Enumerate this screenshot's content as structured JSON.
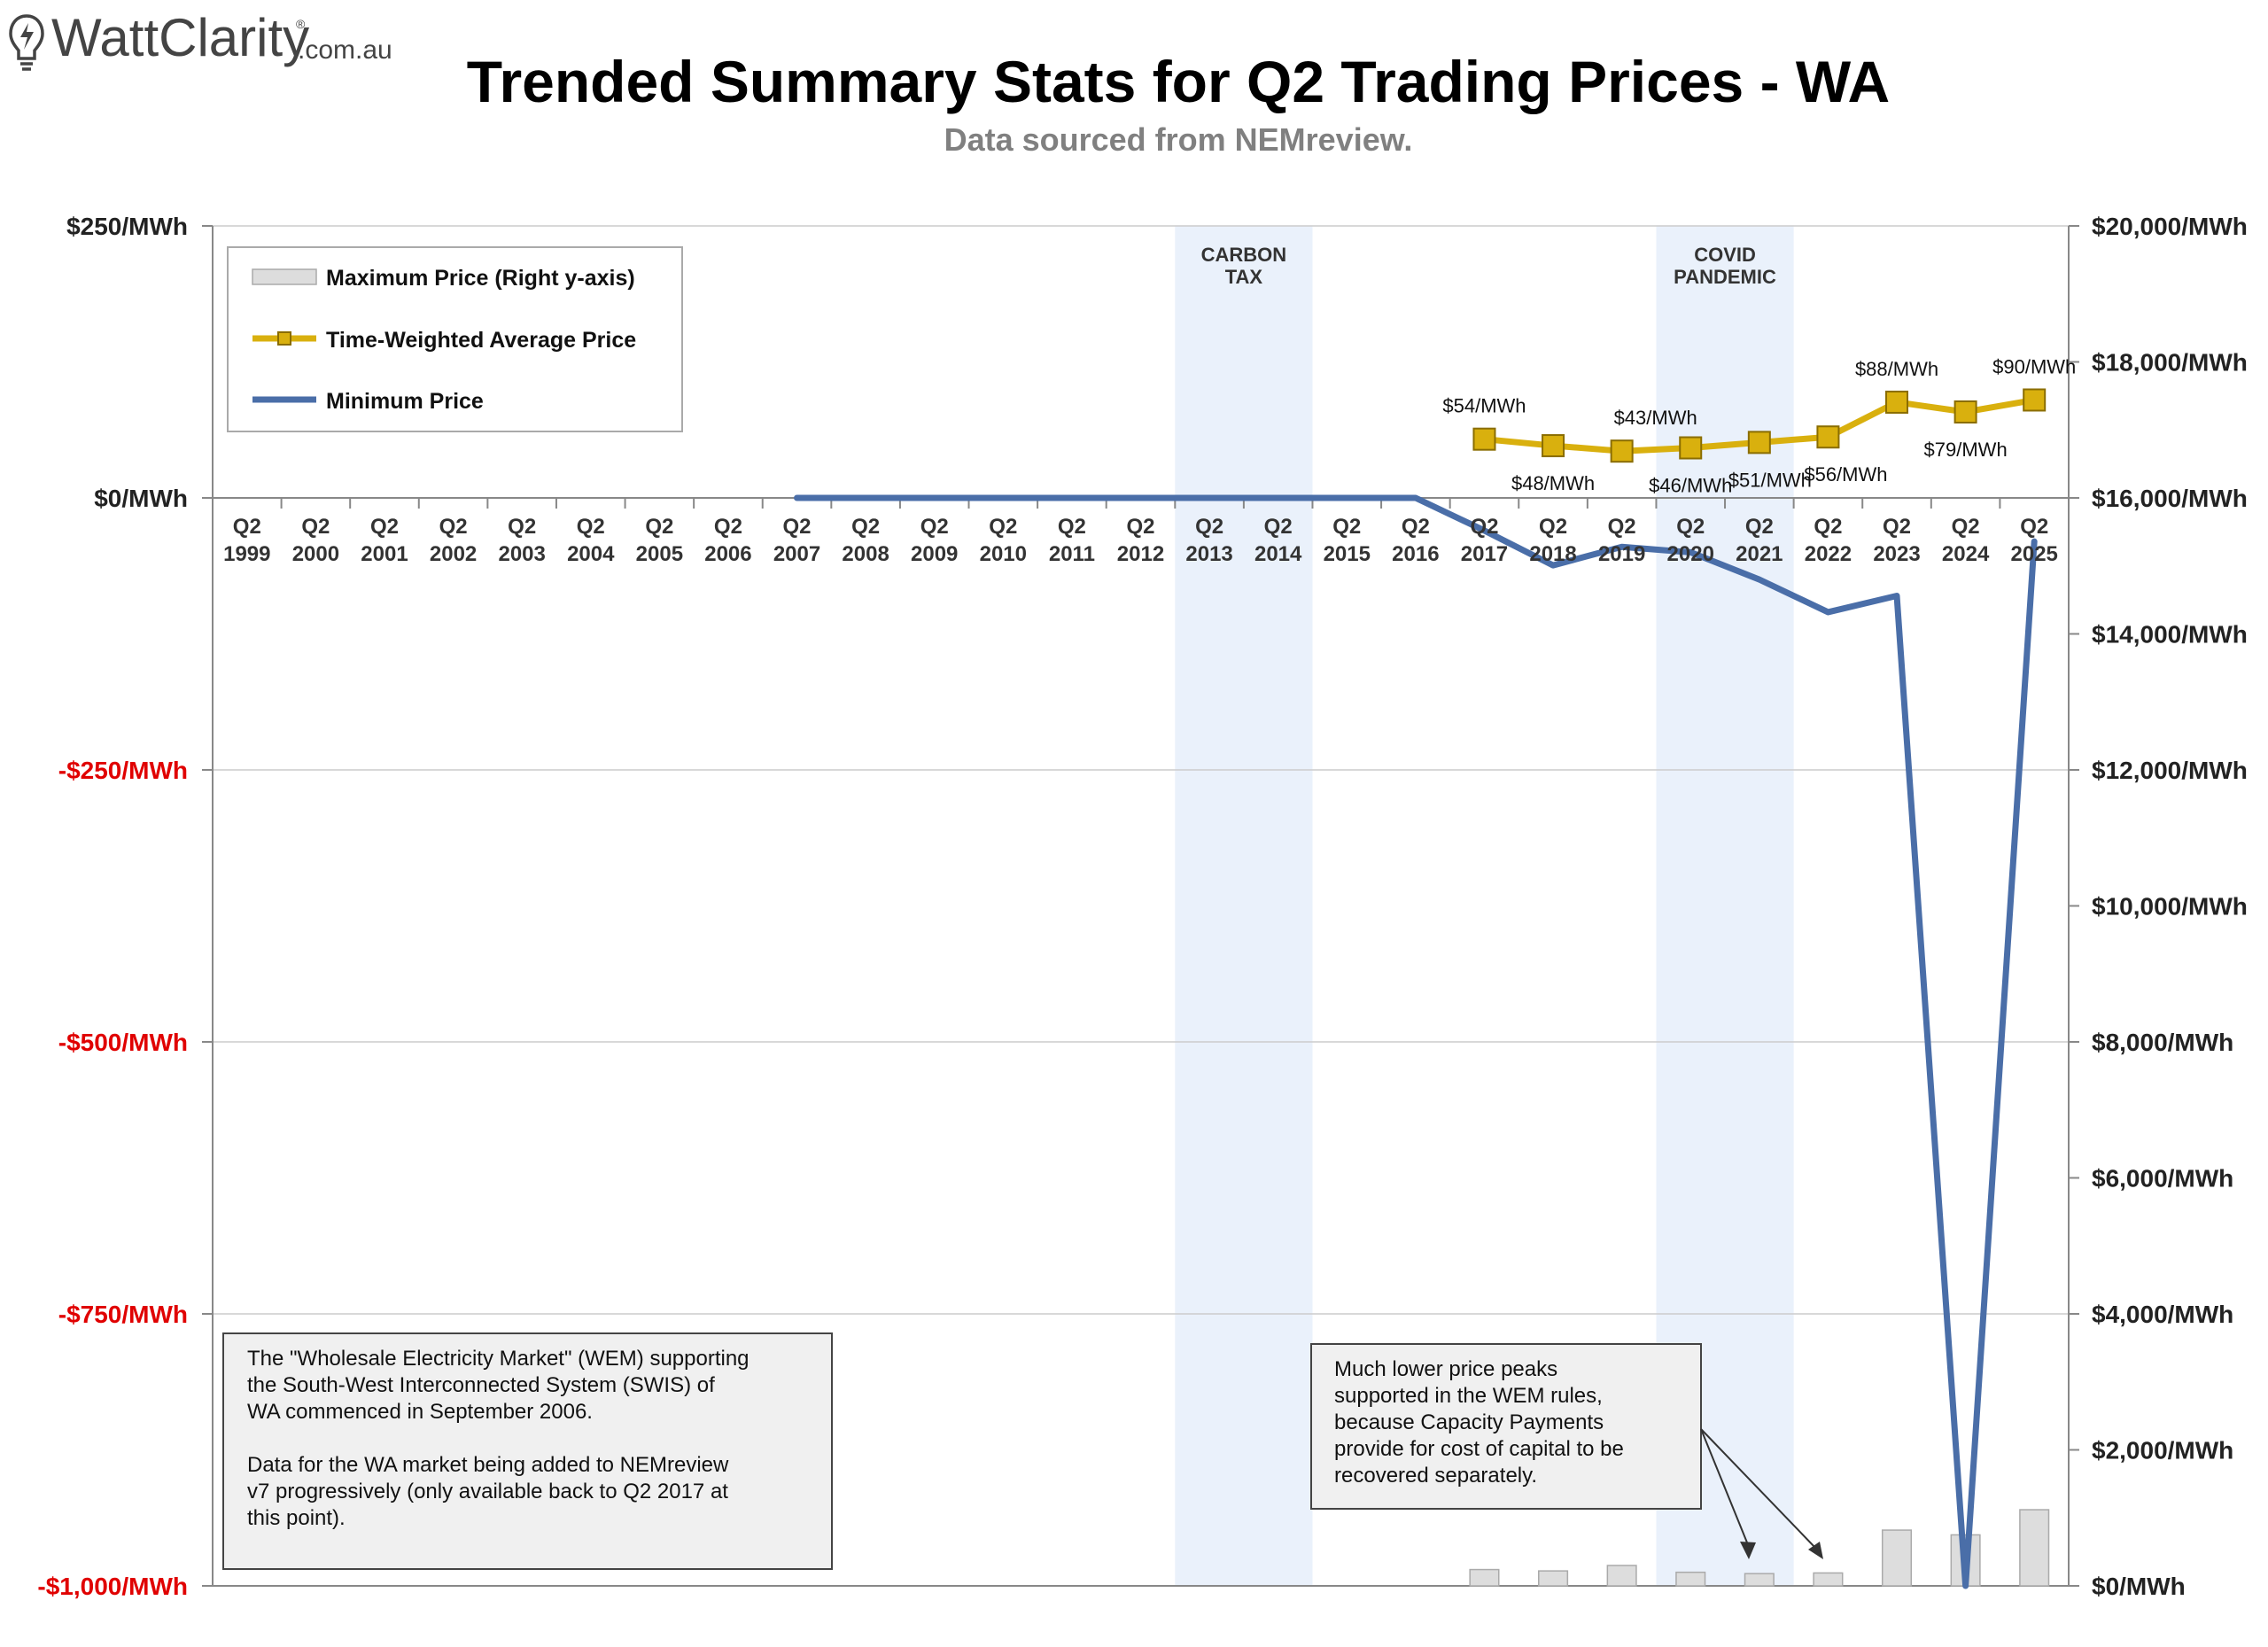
{
  "logo": {
    "brand": "WattClarity",
    "registered": "®",
    "domain": ".com.au"
  },
  "header": {
    "title": "Trended Summary Stats for Q2 Trading Prices - WA",
    "subtitle": "Data sourced from NEMreview."
  },
  "legend": {
    "items": [
      {
        "label": "Maximum Price (Right y-axis)",
        "kind": "bar"
      },
      {
        "label": "Time-Weighted Average Price",
        "kind": "line-marker"
      },
      {
        "label": "Minimum Price",
        "kind": "line"
      }
    ]
  },
  "annotations": {
    "wem_note": [
      "The \"Wholesale Electricity Market\" (WEM) supporting",
      "the South-West Interconnected System (SWIS) of",
      "WA commenced in September 2006.",
      "",
      "Data for the WA market being added to NEMreview",
      "v7 progressively (only available back to Q2 2017 at",
      "this point)."
    ],
    "peaks_note": [
      "Much lower price peaks",
      "supported in the WEM rules,",
      "because Capacity Payments",
      "provide for cost of capital to be",
      "recovered separately."
    ]
  },
  "colors": {
    "avg_line": "#d9b00e",
    "avg_marker_edge": "#8a6d00",
    "min_line": "#4a6ea8",
    "max_bar": "#dddddd",
    "max_bar_edge": "#aaaaaa",
    "shade": "#eaf1fb",
    "grid": "#cccccc",
    "negative_tick": "#e00000",
    "positive_tick": "#222222"
  },
  "chart_data": {
    "type": "line",
    "categories": [
      "Q2 1999",
      "Q2 2000",
      "Q2 2001",
      "Q2 2002",
      "Q2 2003",
      "Q2 2004",
      "Q2 2005",
      "Q2 2006",
      "Q2 2007",
      "Q2 2008",
      "Q2 2009",
      "Q2 2010",
      "Q2 2011",
      "Q2 2012",
      "Q2 2013",
      "Q2 2014",
      "Q2 2015",
      "Q2 2016",
      "Q2 2017",
      "Q2 2018",
      "Q2 2019",
      "Q2 2020",
      "Q2 2021",
      "Q2 2022",
      "Q2 2023",
      "Q2 2024",
      "Q2 2025"
    ],
    "category_lines": [
      [
        "Q2",
        "1999"
      ],
      [
        "Q2",
        "2000"
      ],
      [
        "Q2",
        "2001"
      ],
      [
        "Q2",
        "2002"
      ],
      [
        "Q2",
        "2003"
      ],
      [
        "Q2",
        "2004"
      ],
      [
        "Q2",
        "2005"
      ],
      [
        "Q2",
        "2006"
      ],
      [
        "Q2",
        "2007"
      ],
      [
        "Q2",
        "2008"
      ],
      [
        "Q2",
        "2009"
      ],
      [
        "Q2",
        "2010"
      ],
      [
        "Q2",
        "2011"
      ],
      [
        "Q2",
        "2012"
      ],
      [
        "Q2",
        "2013"
      ],
      [
        "Q2",
        "2014"
      ],
      [
        "Q2",
        "2015"
      ],
      [
        "Q2",
        "2016"
      ],
      [
        "Q2",
        "2017"
      ],
      [
        "Q2",
        "2018"
      ],
      [
        "Q2",
        "2019"
      ],
      [
        "Q2",
        "2020"
      ],
      [
        "Q2",
        "2021"
      ],
      [
        "Q2",
        "2022"
      ],
      [
        "Q2",
        "2023"
      ],
      [
        "Q2",
        "2024"
      ],
      [
        "Q2",
        "2025"
      ]
    ],
    "y_left": {
      "ylim": [
        -1000,
        250
      ],
      "ticks": [
        250,
        0,
        -250,
        -500,
        -750,
        -1000
      ],
      "tick_labels": [
        "$250/MWh",
        "$0/MWh",
        "-$250/MWh",
        "-$500/MWh",
        "-$750/MWh",
        "-$1,000/MWh"
      ]
    },
    "y_right": {
      "ylim": [
        0,
        20000
      ],
      "ticks": [
        20000,
        18000,
        16000,
        14000,
        12000,
        10000,
        8000,
        6000,
        4000,
        2000,
        0
      ],
      "tick_labels": [
        "$20,000/MWh",
        "$18,000/MWh",
        "$16,000/MWh",
        "$14,000/MWh",
        "$12,000/MWh",
        "$10,000/MWh",
        "$8,000/MWh",
        "$6,000/MWh",
        "$4,000/MWh",
        "$2,000/MWh",
        "$0/MWh"
      ]
    },
    "shaded_periods": [
      {
        "label_lines": [
          "CARBON",
          "TAX"
        ],
        "from": "Q2 2013",
        "to": "Q2 2014"
      },
      {
        "label_lines": [
          "COVID",
          "PANDEMIC"
        ],
        "from": "Q2 2020",
        "to": "Q2 2021"
      }
    ],
    "series": [
      {
        "name": "Maximum Price (Right y-axis)",
        "type": "bar",
        "axis": "right",
        "values": [
          null,
          null,
          null,
          null,
          null,
          null,
          null,
          null,
          null,
          null,
          null,
          null,
          null,
          null,
          null,
          null,
          null,
          null,
          240,
          220,
          300,
          200,
          180,
          190,
          820,
          750,
          1120
        ]
      },
      {
        "name": "Time-Weighted Average Price",
        "type": "line",
        "axis": "left",
        "values": [
          null,
          null,
          null,
          null,
          null,
          null,
          null,
          null,
          null,
          null,
          null,
          null,
          null,
          null,
          null,
          null,
          null,
          null,
          54,
          48,
          43,
          46,
          51,
          56,
          88,
          79,
          90
        ],
        "data_labels": [
          null,
          null,
          null,
          null,
          null,
          null,
          null,
          null,
          null,
          null,
          null,
          null,
          null,
          null,
          null,
          null,
          null,
          null,
          "$54/MWh",
          "$48/MWh",
          "$43/MWh",
          "$46/MWh",
          "$51/MWh",
          "$56/MWh",
          "$88/MWh",
          "$79/MWh",
          "$90/MWh"
        ]
      },
      {
        "name": "Minimum Price",
        "type": "line",
        "axis": "left",
        "values": [
          null,
          null,
          null,
          null,
          null,
          null,
          null,
          null,
          0,
          0,
          0,
          0,
          0,
          0,
          0,
          0,
          0,
          0,
          -30,
          -62,
          -45,
          -50,
          -75,
          -105,
          -90,
          -1000,
          -40
        ]
      }
    ],
    "grid": true,
    "legend_position": "top-left"
  }
}
